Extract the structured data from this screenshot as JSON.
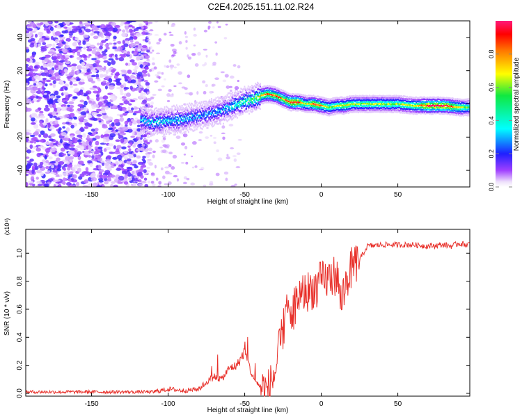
{
  "title": "C2E4.2025.151.11.02.R24",
  "chart_data": [
    {
      "type": "heatmap",
      "xlabel": "Height of straight line (km)",
      "ylabel": "Frequency (Hz)",
      "xlim": [
        -193,
        97
      ],
      "ylim": [
        -50,
        50
      ],
      "xticks": [
        -150,
        -100,
        -50,
        0,
        50
      ],
      "xtick_labels": [
        "-150",
        "-100",
        "-50",
        "0",
        "50"
      ],
      "yticks": [
        -40,
        -20,
        0,
        20,
        40
      ],
      "ytick_labels": [
        "-40",
        "-20",
        "0",
        "20",
        "40"
      ],
      "colorbar": {
        "label": "Normalized spectral amplitude",
        "range": [
          0,
          1
        ],
        "ticks": [
          0.0,
          0.2,
          0.4,
          0.6,
          0.8
        ],
        "tick_labels": [
          "0.0",
          "0.2",
          "0.4",
          "0.6",
          "0.8"
        ]
      },
      "ridge": {
        "x": [
          -193,
          -180,
          -160,
          -140,
          -120,
          -115,
          -110,
          -100,
          -90,
          -80,
          -70,
          -60,
          -55,
          -50,
          -45,
          -40,
          -35,
          -30,
          -25,
          -20,
          -15,
          -10,
          -5,
          0,
          5,
          10,
          15,
          20,
          30,
          40,
          50,
          60,
          70,
          80,
          90,
          97
        ],
        "frequency": [
          -12,
          -12,
          -11,
          -11,
          -10,
          -10,
          -11,
          -10,
          -9,
          -7,
          -5,
          -2,
          0,
          2,
          3,
          5,
          6,
          5,
          3,
          1,
          1,
          0,
          0,
          -1,
          -2,
          -1,
          -1,
          0,
          0,
          0,
          0,
          -1,
          -1,
          -1,
          -2,
          -2
        ],
        "amplitude": [
          0.3,
          0.3,
          0.3,
          0.3,
          0.35,
          0.35,
          0.38,
          0.38,
          0.36,
          0.3,
          0.3,
          0.38,
          0.45,
          0.5,
          0.6,
          0.72,
          0.85,
          0.82,
          0.8,
          0.92,
          0.95,
          0.6,
          0.92,
          0.75,
          0.6,
          0.6,
          0.72,
          0.62,
          0.62,
          0.6,
          0.6,
          0.65,
          0.98,
          0.98,
          0.7,
          0.5
        ]
      },
      "noise_region_x": [
        -193,
        -113
      ]
    },
    {
      "type": "line",
      "xlabel": "Height of straight line (km)",
      "ylabel": "SNR (10 * v/v)",
      "y_multiplier": "(x10⁴)",
      "xlim": [
        -193,
        97
      ],
      "ylim": [
        -0.02,
        1.17
      ],
      "xticks": [
        -150,
        -100,
        -50,
        0,
        50
      ],
      "xtick_labels": [
        "-150",
        "-100",
        "-50",
        "0",
        "50"
      ],
      "yticks": [
        0.0,
        0.2,
        0.4,
        0.6,
        0.8,
        1.0
      ],
      "ytick_labels": [
        "0.0",
        "0.2",
        "0.4",
        "0.6",
        "0.8",
        "1.0"
      ],
      "series": [
        {
          "color": "#e8302a",
          "x": [
            -193,
            -150,
            -110,
            -100,
            -90,
            -80,
            -75,
            -70,
            -65,
            -60,
            -55,
            -50,
            -45,
            -40,
            -35,
            -30,
            -28,
            -25,
            -22,
            -20,
            -15,
            -10,
            -5,
            0,
            5,
            10,
            13,
            15,
            18,
            20,
            25,
            30,
            40,
            50,
            60,
            70,
            80,
            85,
            90,
            95,
            97
          ],
          "y": [
            0.01,
            0.01,
            0.01,
            0.03,
            0.02,
            0.03,
            0.08,
            0.12,
            0.1,
            0.18,
            0.2,
            0.3,
            0.12,
            0.05,
            0.02,
            0.15,
            0.28,
            0.45,
            0.6,
            0.55,
            0.7,
            0.72,
            0.75,
            0.8,
            0.82,
            0.85,
            0.65,
            0.75,
            0.85,
            0.9,
            0.95,
            1.05,
            1.06,
            1.06,
            1.06,
            1.05,
            1.06,
            1.05,
            1.07,
            1.06,
            1.07
          ]
        }
      ]
    }
  ]
}
